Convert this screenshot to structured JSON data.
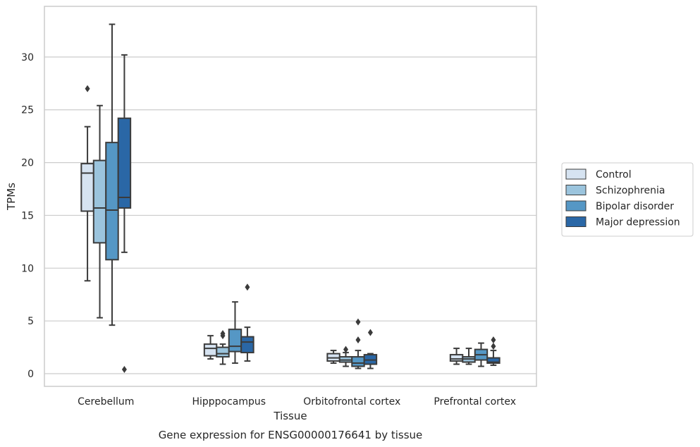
{
  "caption": "Gene expression for ENSG00000176641 by tissue",
  "chart_data": {
    "type": "box",
    "xlabel": "Tissue",
    "ylabel": "TPMs",
    "ylim": [
      -1.2,
      34.8
    ],
    "yticks": [
      0,
      5,
      10,
      15,
      20,
      25,
      30
    ],
    "grid": "horizontal",
    "legend_position": "right",
    "categories": [
      "Cerebellum",
      "Hipppocampus",
      "Orbitofrontal cortex",
      "Prefrontal cortex"
    ],
    "series": [
      {
        "name": "Control",
        "color": "#d6e3f1",
        "boxes": [
          {
            "whislo": 8.8,
            "q1": 15.4,
            "med": 19.0,
            "q3": 19.9,
            "whishi": 23.4,
            "fliers": [
              27.0
            ]
          },
          {
            "whislo": 1.4,
            "q1": 1.7,
            "med": 2.4,
            "q3": 2.8,
            "whishi": 3.6,
            "fliers": []
          },
          {
            "whislo": 1.0,
            "q1": 1.2,
            "med": 1.5,
            "q3": 1.9,
            "whishi": 2.2,
            "fliers": []
          },
          {
            "whislo": 0.9,
            "q1": 1.2,
            "med": 1.4,
            "q3": 1.8,
            "whishi": 2.4,
            "fliers": []
          }
        ]
      },
      {
        "name": "Schizophrenia",
        "color": "#9bc4dd",
        "boxes": [
          {
            "whislo": 5.3,
            "q1": 12.4,
            "med": 15.7,
            "q3": 20.2,
            "whishi": 25.4,
            "fliers": []
          },
          {
            "whislo": 0.9,
            "q1": 1.6,
            "med": 1.9,
            "q3": 2.5,
            "whishi": 2.8,
            "fliers": [
              3.6,
              3.8
            ]
          },
          {
            "whislo": 0.7,
            "q1": 1.1,
            "med": 1.3,
            "q3": 1.6,
            "whishi": 2.0,
            "fliers": [
              2.3
            ]
          },
          {
            "whislo": 0.9,
            "q1": 1.1,
            "med": 1.4,
            "q3": 1.6,
            "whishi": 2.4,
            "fliers": []
          }
        ]
      },
      {
        "name": "Bipolar disorder",
        "color": "#5597c5",
        "boxes": [
          {
            "whislo": 4.6,
            "q1": 10.8,
            "med": 15.5,
            "q3": 21.9,
            "whishi": 33.1,
            "fliers": []
          },
          {
            "whislo": 1.0,
            "q1": 2.1,
            "med": 2.6,
            "q3": 4.2,
            "whishi": 6.8,
            "fliers": []
          },
          {
            "whislo": 0.5,
            "q1": 0.7,
            "med": 1.0,
            "q3": 1.6,
            "whishi": 2.2,
            "fliers": [
              3.2,
              4.9
            ]
          },
          {
            "whislo": 0.7,
            "q1": 1.3,
            "med": 1.8,
            "q3": 2.3,
            "whishi": 2.9,
            "fliers": []
          }
        ]
      },
      {
        "name": "Major depression",
        "color": "#2a67a6",
        "boxes": [
          {
            "whislo": 11.5,
            "q1": 15.7,
            "med": 16.7,
            "q3": 24.2,
            "whishi": 30.2,
            "fliers": [
              0.4
            ]
          },
          {
            "whislo": 1.2,
            "q1": 2.0,
            "med": 3.0,
            "q3": 3.5,
            "whishi": 4.4,
            "fliers": [
              8.2
            ]
          },
          {
            "whislo": 0.5,
            "q1": 0.9,
            "med": 1.3,
            "q3": 1.8,
            "whishi": 1.9,
            "fliers": [
              3.9
            ]
          },
          {
            "whislo": 0.8,
            "q1": 1.0,
            "med": 1.1,
            "q3": 1.5,
            "whishi": 2.2,
            "fliers": [
              2.6,
              3.2
            ]
          }
        ]
      }
    ]
  }
}
